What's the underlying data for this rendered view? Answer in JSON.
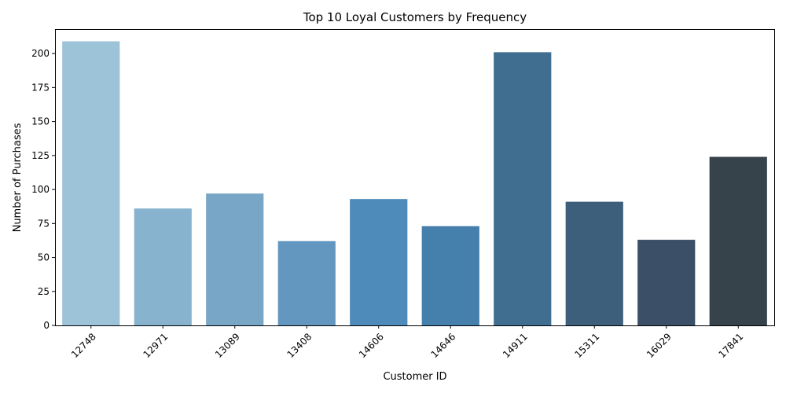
{
  "chart_data": {
    "type": "bar",
    "title": "Top 10 Loyal Customers by Frequency",
    "xlabel": "Customer ID",
    "ylabel": "Number of Purchases",
    "categories": [
      "12748",
      "12971",
      "13089",
      "13408",
      "14606",
      "14646",
      "14911",
      "15311",
      "16029",
      "17841"
    ],
    "values": [
      209,
      86,
      97,
      62,
      93,
      73,
      201,
      91,
      63,
      124
    ],
    "colors": [
      "#9dc3d9",
      "#88b3cf",
      "#78a6c6",
      "#6397c0",
      "#4f8bba",
      "#457fab",
      "#3f6e91",
      "#3d5f7c",
      "#3b4f66",
      "#37434b"
    ],
    "ylim": [
      0,
      218
    ],
    "yticks": [
      0,
      25,
      50,
      75,
      100,
      125,
      150,
      175,
      200
    ],
    "grid": false,
    "legend": "none"
  }
}
